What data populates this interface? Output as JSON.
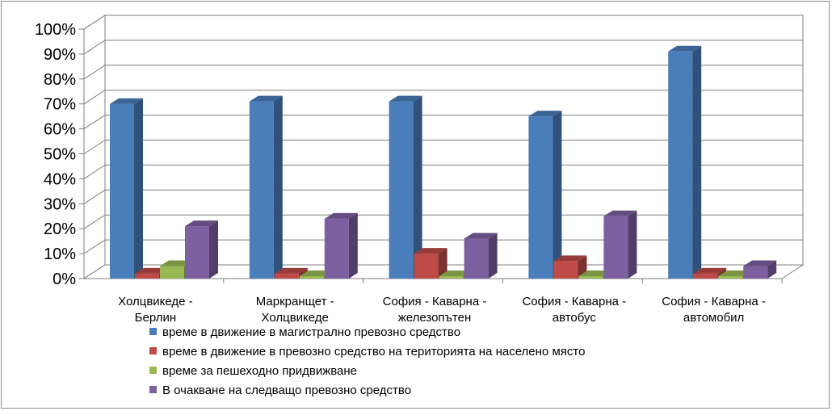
{
  "chart_data": {
    "type": "bar",
    "title": "",
    "xlabel": "",
    "ylabel": "",
    "ylim": [
      0,
      100
    ],
    "y_ticks": [
      "0%",
      "10%",
      "20%",
      "30%",
      "40%",
      "50%",
      "60%",
      "70%",
      "80%",
      "90%",
      "100%"
    ],
    "grid": true,
    "legend_position": "bottom",
    "categories": [
      [
        "Холцвикеде -",
        "Берлин"
      ],
      [
        "Маркранщет -",
        "Холцвикеде"
      ],
      [
        "София - Каварна -",
        "железопътен"
      ],
      [
        "София - Каварна -",
        "автобус"
      ],
      [
        "София - Каварна -",
        "автомобил"
      ]
    ],
    "series": [
      {
        "name": "време в движение в магистрално превозно средство",
        "color": "#4a7ebb",
        "values": [
          70,
          71,
          71,
          65,
          91
        ]
      },
      {
        "name": "време в движение в превозно средство на територията на населено място",
        "color": "#be4b48",
        "values": [
          2,
          2,
          10,
          7,
          2
        ]
      },
      {
        "name": "време за пешеходно придвижване",
        "color": "#98b954",
        "values": [
          5,
          0,
          0,
          0,
          0
        ]
      },
      {
        "name": "В очакване на следващо превозно средство",
        "color": "#7d60a0",
        "values": [
          21,
          24,
          16,
          25,
          5
        ]
      }
    ]
  }
}
